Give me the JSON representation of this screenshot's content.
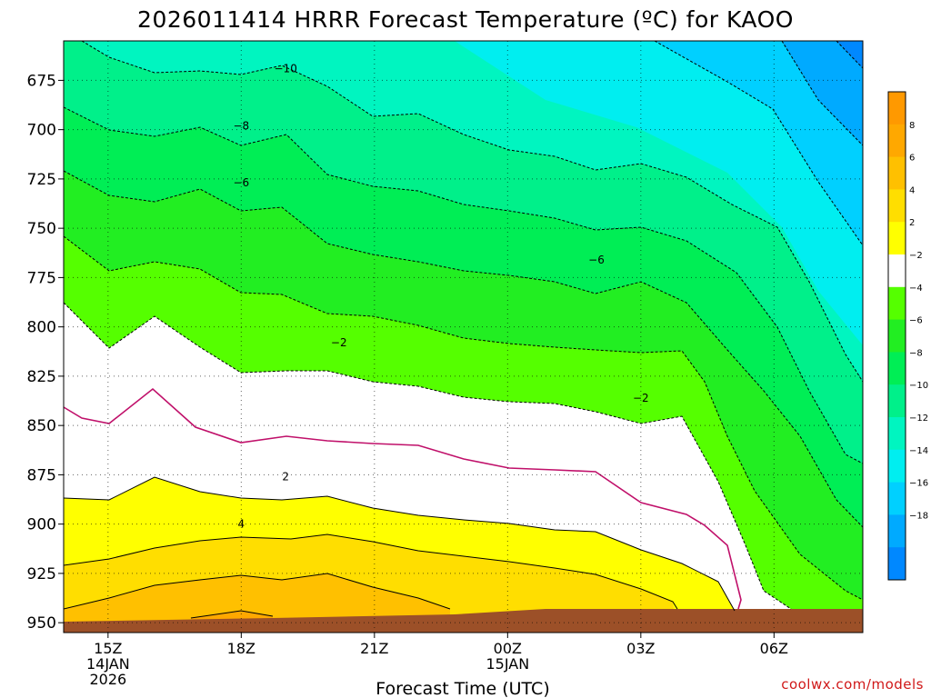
{
  "chart_data": {
    "type": "heatmap",
    "title": "2026011414 HRRR Forecast Temperature (ºC) for KAOO",
    "xlabel": "Forecast Time (UTC)",
    "credit": "coolwx.com/models",
    "y_axis": {
      "ticks": [
        675,
        700,
        725,
        750,
        775,
        800,
        825,
        850,
        875,
        900,
        925,
        950
      ],
      "range": [
        955,
        655
      ],
      "scale": "pressure (reversed)"
    },
    "x_axis": {
      "ticks": [
        {
          "hour": 1,
          "lines": [
            "15Z",
            "14JAN",
            "2026"
          ]
        },
        {
          "hour": 4,
          "lines": [
            "18Z"
          ]
        },
        {
          "hour": 7,
          "lines": [
            "21Z"
          ]
        },
        {
          "hour": 10,
          "lines": [
            "00Z",
            "15JAN"
          ]
        },
        {
          "hour": 13,
          "lines": [
            "03Z"
          ]
        },
        {
          "hour": 16,
          "lines": [
            "06Z"
          ]
        }
      ],
      "range": [
        0,
        18
      ]
    },
    "grid": true,
    "colorbar": {
      "placement": "right",
      "levels": [
        {
          "label": "",
          "color": "#ff9900"
        },
        {
          "label": "8",
          "color": "#ffa800"
        },
        {
          "label": "6",
          "color": "#ffc000"
        },
        {
          "label": "4",
          "color": "#ffde00"
        },
        {
          "label": "2",
          "color": "#ffff00"
        },
        {
          "label": "−2",
          "color": "#ffffff"
        },
        {
          "label": "−4",
          "color": "#55ff00"
        },
        {
          "label": "−6",
          "color": "#22ee22"
        },
        {
          "label": "−8",
          "color": "#00ee55"
        },
        {
          "label": "−10",
          "color": "#00f08a"
        },
        {
          "label": "−12",
          "color": "#00f5c0"
        },
        {
          "label": "−14",
          "color": "#00eef0"
        },
        {
          "label": "−16",
          "color": "#00d0ff"
        },
        {
          "label": "−18",
          "color": "#00aaff"
        },
        {
          "label": "",
          "color": "#0088ff"
        }
      ]
    },
    "contour_labels": [
      {
        "text": "−10",
        "hour": 5.0,
        "pressure": 669
      },
      {
        "text": "−8",
        "hour": 4.0,
        "pressure": 698
      },
      {
        "text": "−6",
        "hour": 4.0,
        "pressure": 727
      },
      {
        "text": "−6",
        "hour": 12.0,
        "pressure": 766
      },
      {
        "text": "−2",
        "hour": 6.2,
        "pressure": 808
      },
      {
        "text": "−2",
        "hour": 13.0,
        "pressure": 836
      },
      {
        "text": "2",
        "hour": 5.0,
        "pressure": 876
      },
      {
        "text": "4",
        "hour": 4.0,
        "pressure": 900
      }
    ],
    "terrain_color": "#9c5028"
  }
}
